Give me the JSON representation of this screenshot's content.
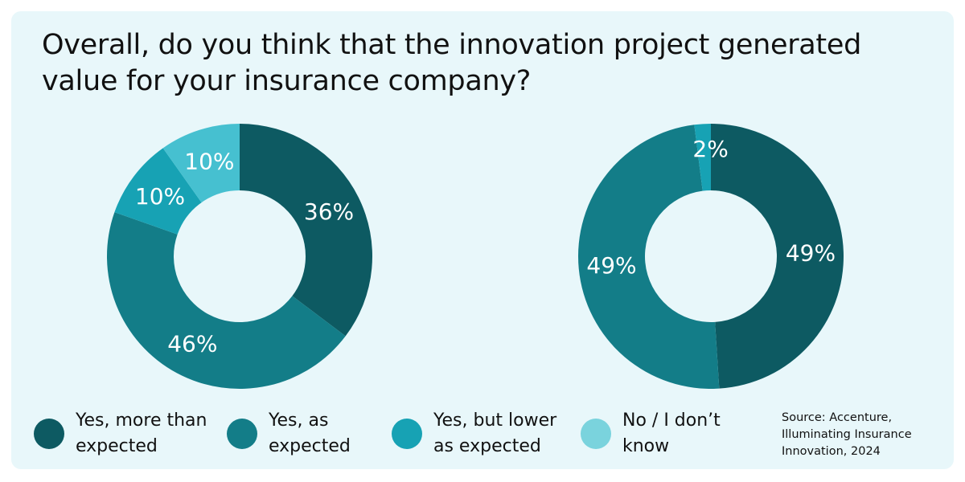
{
  "title": "Overall, do you think that the innovation project generated value for your insurance company?",
  "source": [
    "Source: Accenture,",
    "Illuminating Insurance",
    "Innovation, 2024"
  ],
  "legend": [
    {
      "label": "Yes, more than expected",
      "color": "#0d5a62"
    },
    {
      "label": "Yes, as expected",
      "color": "#137d88"
    },
    {
      "label": "Yes, but lower as expected",
      "color": "#17a2b4"
    },
    {
      "label": "No / I don’t know",
      "color": "#7ad3dd"
    }
  ],
  "chart_data": [
    {
      "type": "pie",
      "donut": true,
      "categories": [
        "Yes, more than expected",
        "Yes, as expected",
        "Yes, but lower as expected",
        "No / I don’t know"
      ],
      "values": [
        36,
        46,
        10,
        10
      ],
      "labels": [
        "36%",
        "46%",
        "10%",
        "10%"
      ],
      "colors": [
        "#0d5a62",
        "#137d88",
        "#17a2b4",
        "#46c0d0"
      ]
    },
    {
      "type": "pie",
      "donut": true,
      "categories": [
        "Yes, more than expected",
        "Yes, as expected",
        "Yes, but lower as expected"
      ],
      "values": [
        49,
        49,
        2
      ],
      "labels": [
        "49%",
        "49%",
        "2%"
      ],
      "colors": [
        "#0d5a62",
        "#137d88",
        "#17a2b4"
      ]
    }
  ]
}
